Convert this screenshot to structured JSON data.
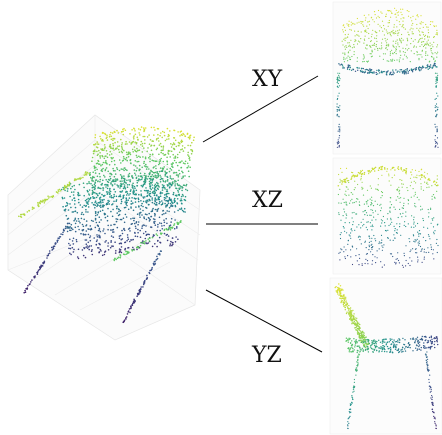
{
  "views": [
    {
      "key": "xy",
      "label": "XY"
    },
    {
      "key": "xz",
      "label": "XZ"
    },
    {
      "key": "yz",
      "label": "YZ"
    }
  ],
  "colormap": [
    "#440154",
    "#3b528b",
    "#21918c",
    "#5ec962",
    "#fde725"
  ],
  "main_view": {
    "projection": "3d",
    "axes_grid": true
  }
}
